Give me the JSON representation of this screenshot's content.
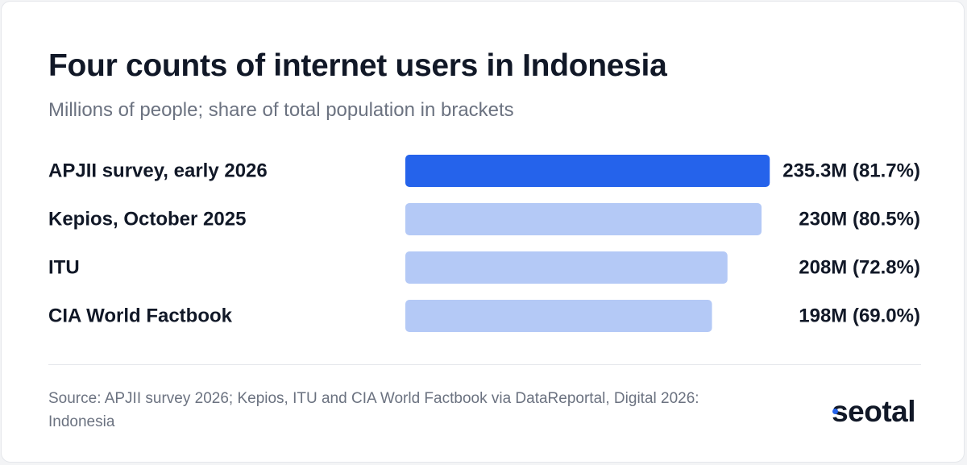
{
  "chart_data": {
    "type": "bar",
    "orientation": "horizontal",
    "title": "Four counts of internet users in Indonesia",
    "subtitle": "Millions of people; share of total population in brackets",
    "categories": [
      "APJII survey, early 2026",
      "Kepios, October 2025",
      "ITU",
      "CIA World Factbook"
    ],
    "values": [
      235.3,
      230,
      208,
      198
    ],
    "value_labels": [
      "235.3M (81.7%)",
      "230M (80.5%)",
      "208M (72.8%)",
      "198M (69.0%)"
    ],
    "highlight_index": 0,
    "xlim": [
      0,
      235.3
    ],
    "grid": false,
    "colors": {
      "highlight": "#2563eb",
      "default": "#b4c9f6"
    }
  },
  "footer": {
    "source": "Source: APJII survey 2026; Kepios, ITU and CIA World Factbook via DataReportal, Digital 2026: Indonesia",
    "logo": "seotal"
  }
}
